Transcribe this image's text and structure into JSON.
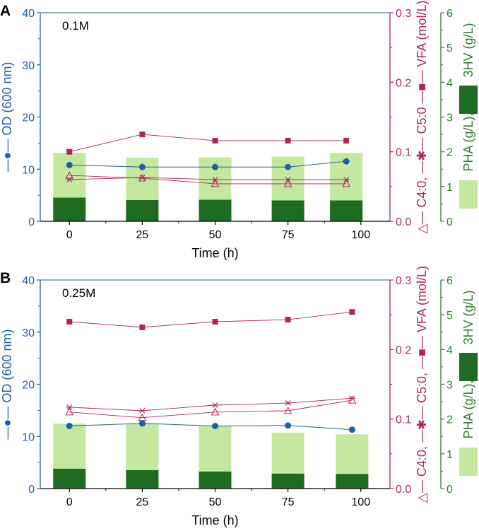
{
  "colors": {
    "od": "#1f5ea8",
    "vfa": "#b0245f",
    "pha_total": "#c5e8a0",
    "hv3": "#1e6b22",
    "pha_axis": "#2e7d32",
    "frame": "#000000"
  },
  "chart_data": [
    {
      "type": "bar+line",
      "panel_label": "A",
      "annotation": "0.1M",
      "xlabel": "Time (h)",
      "x_ticks": [
        "0",
        "25",
        "50",
        "75",
        "100"
      ],
      "xlim": [
        -10,
        110
      ],
      "left_axis": {
        "label_prefix": "—●— ",
        "label": "OD (600 nm)",
        "ylim": [
          0,
          40
        ],
        "ticks": [
          "0",
          "10",
          "20",
          "30",
          "40"
        ]
      },
      "right_axis_1": {
        "label_c4": "C4:0,",
        "label_c5": "C5:0",
        "label_vfa": "VFA (mol/L)",
        "ylim": [
          0,
          0.3
        ],
        "ticks": [
          "0.0",
          "0.1",
          "0.2",
          "0.3"
        ]
      },
      "right_axis_2": {
        "label_pha": "PHA (g/L),",
        "label_3hv": "3HV (g/L)",
        "ylim": [
          0,
          6
        ],
        "ticks": [
          "0",
          "1",
          "2",
          "3",
          "4",
          "5",
          "6"
        ]
      },
      "x": [
        0,
        25,
        50,
        75,
        95
      ],
      "series": [
        {
          "name": "OD (600 nm)",
          "axis": "left",
          "values": [
            10.8,
            10.4,
            10.4,
            10.4,
            11.5
          ]
        },
        {
          "name": "VFA (mol/L)",
          "axis": "right1",
          "marker": "square",
          "values": [
            0.1,
            0.125,
            0.116,
            0.116,
            0.116
          ]
        },
        {
          "name": "C5:0",
          "axis": "right1",
          "marker": "asterisk",
          "values": [
            0.06,
            0.063,
            0.06,
            0.06,
            0.06
          ]
        },
        {
          "name": "C4:0",
          "axis": "right1",
          "marker": "triangle",
          "values": [
            0.066,
            0.062,
            0.054,
            0.054,
            0.054
          ]
        },
        {
          "name": "PHA (g/L)",
          "axis": "right2",
          "type": "bar",
          "values": [
            1.97,
            1.83,
            1.84,
            1.86,
            1.97
          ]
        },
        {
          "name": "3HV (g/L)",
          "axis": "right2",
          "type": "bar",
          "values": [
            0.68,
            0.61,
            0.62,
            0.6,
            0.6
          ]
        }
      ]
    },
    {
      "type": "bar+line",
      "panel_label": "B",
      "annotation": "0.25M",
      "xlabel": "Time (h)",
      "x_ticks": [
        "0",
        "25",
        "50",
        "75",
        "100"
      ],
      "xlim": [
        -10,
        110
      ],
      "left_axis": {
        "label_prefix": "—●— ",
        "label": "OD (600 nm)",
        "ylim": [
          0,
          40
        ],
        "ticks": [
          "0",
          "10",
          "20",
          "30",
          "40"
        ]
      },
      "right_axis_1": {
        "label_c4": "C4:0,",
        "label_c5": "C5:0,",
        "label_vfa": "VFA (mol/L)",
        "ylim": [
          0,
          0.3
        ],
        "ticks": [
          "0.0",
          "0.1",
          "0.2",
          "0.3"
        ]
      },
      "right_axis_2": {
        "label_pha": "PHA (g/L),",
        "label_3hv": "3HV (g/L)",
        "ylim": [
          0,
          6
        ],
        "ticks": [
          "0",
          "1",
          "2",
          "3",
          "4",
          "5",
          "6"
        ]
      },
      "x": [
        0,
        25,
        50,
        75,
        97
      ],
      "series": [
        {
          "name": "OD (600 nm)",
          "axis": "left",
          "values": [
            12.0,
            12.5,
            12.0,
            12.1,
            11.3
          ]
        },
        {
          "name": "VFA (mol/L)",
          "axis": "right1",
          "marker": "square",
          "values": [
            0.24,
            0.232,
            0.24,
            0.243,
            0.254
          ]
        },
        {
          "name": "C5:0",
          "axis": "right1",
          "marker": "asterisk",
          "values": [
            0.117,
            0.112,
            0.12,
            0.123,
            0.13
          ]
        },
        {
          "name": "C4:0",
          "axis": "right1",
          "marker": "triangle",
          "values": [
            0.11,
            0.102,
            0.11,
            0.112,
            0.127
          ]
        },
        {
          "name": "PHA (g/L)",
          "axis": "right2",
          "type": "bar",
          "values": [
            1.87,
            1.87,
            1.79,
            1.61,
            1.56
          ]
        },
        {
          "name": "3HV (g/L)",
          "axis": "right2",
          "type": "bar",
          "values": [
            0.57,
            0.53,
            0.49,
            0.43,
            0.42
          ]
        }
      ]
    }
  ]
}
